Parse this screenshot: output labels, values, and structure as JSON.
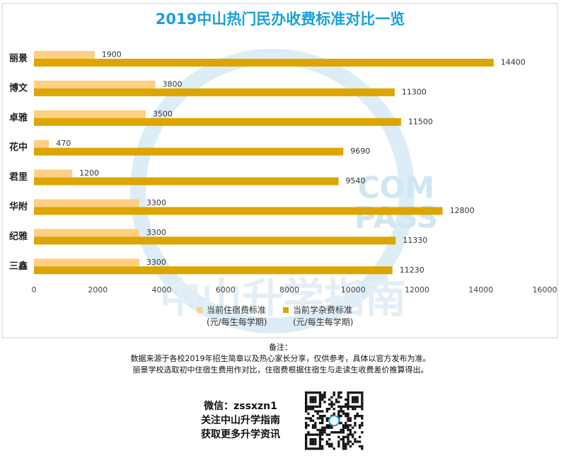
{
  "chart_data": {
    "type": "hbar",
    "title": "2019中山热门民办收费标准对比一览",
    "categories": [
      "丽景",
      "博文",
      "卓雅",
      "花中",
      "君里",
      "华附",
      "纪雅",
      "三鑫"
    ],
    "series": [
      {
        "name": "当前住宿费标准\n(元/每生每学期)",
        "color": "#FFCF84",
        "values": [
          1900,
          3800,
          3500,
          470,
          1200,
          3300,
          3300,
          3300
        ]
      },
      {
        "name": "当前学杂费标准\n(元/每生每学期)",
        "color": "#DCA500",
        "values": [
          14400,
          11300,
          11500,
          9690,
          9540,
          12800,
          11330,
          11230
        ]
      }
    ],
    "xlim": [
      0,
      16000
    ],
    "xticks": [
      0,
      2000,
      4000,
      6000,
      8000,
      10000,
      12000,
      14000,
      16000
    ],
    "grid": false,
    "watermark": [
      "COM",
      "PASS",
      "中山升学指南"
    ]
  },
  "notes": {
    "heading": "备注：",
    "lines": [
      "数据来源于各校2019年招生简章以及热心家长分享，仅供参考，具体以官方发布为准。",
      "丽景学校选取初中住宿生费用作对比，住宿费根据住宿生与走读生收费差价推算得出。"
    ]
  },
  "promo": {
    "lines": [
      "微信：zssxzn1",
      "关注中山升学指南",
      "获取更多升学资讯"
    ]
  }
}
